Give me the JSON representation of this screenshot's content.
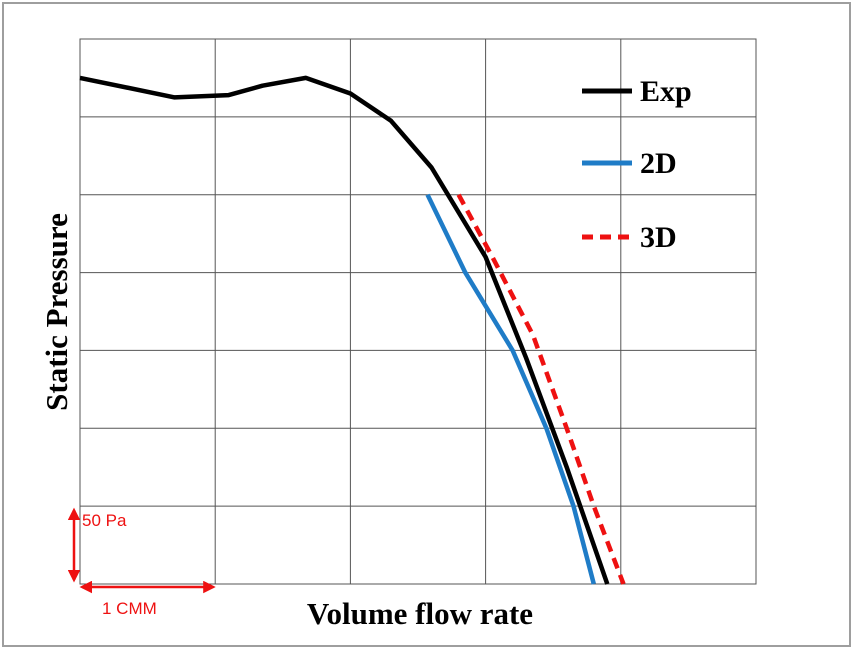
{
  "chart_data": {
    "type": "line",
    "title": "",
    "xlabel": "Volume flow rate",
    "ylabel": "Static Pressure",
    "grid": true,
    "xlim": [
      0,
      5
    ],
    "ylim": [
      0,
      7
    ],
    "legend_position": "top-right",
    "series": [
      {
        "name": "Exp",
        "color": "#000000",
        "dash": "solid",
        "points": [
          [
            0,
            6.5
          ],
          [
            0.7,
            6.25
          ],
          [
            1.1,
            6.28
          ],
          [
            1.35,
            6.4
          ],
          [
            1.67,
            6.5
          ],
          [
            2.0,
            6.3
          ],
          [
            2.3,
            5.95
          ],
          [
            2.6,
            5.35
          ],
          [
            3.0,
            4.2
          ],
          [
            3.3,
            2.9
          ],
          [
            3.6,
            1.5
          ],
          [
            3.9,
            0
          ]
        ]
      },
      {
        "name": "2D",
        "color": "#1f7cc7",
        "dash": "solid",
        "points": [
          [
            2.57,
            5.0
          ],
          [
            2.85,
            4.0
          ],
          [
            3.2,
            3.0
          ],
          [
            3.45,
            2.0
          ],
          [
            3.65,
            1.0
          ],
          [
            3.8,
            0
          ]
        ]
      },
      {
        "name": "3D",
        "color": "#ee1111",
        "dash": "dashed",
        "points": [
          [
            2.8,
            5.0
          ],
          [
            3.05,
            4.2
          ],
          [
            3.35,
            3.2
          ],
          [
            3.6,
            2.0
          ],
          [
            3.8,
            1.0
          ],
          [
            4.02,
            0
          ]
        ]
      }
    ],
    "scale_bars": {
      "vertical_label": "50 Pa",
      "vertical_value": 1,
      "horizontal_label": "1 CMM",
      "horizontal_value": 1
    }
  }
}
